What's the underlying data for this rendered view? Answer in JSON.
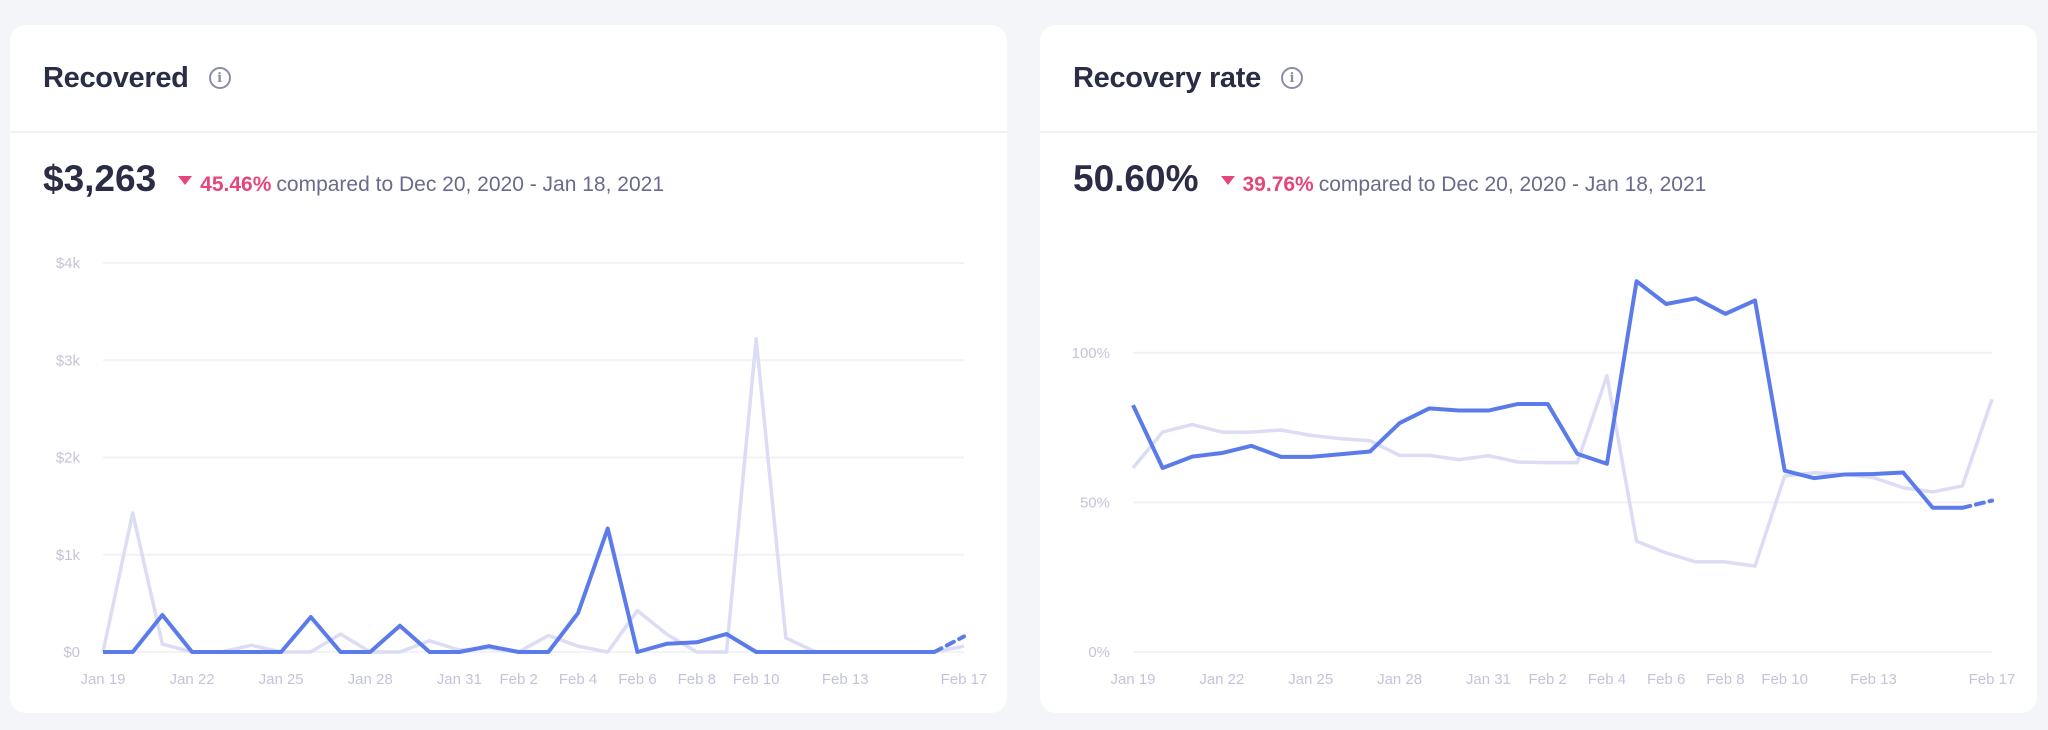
{
  "colors": {
    "current": "#5b7bea",
    "previous": "#dcdcf4",
    "negative": "#e5467a",
    "grid": "#f2f2f7"
  },
  "cards": [
    {
      "title": "Recovered",
      "info_icon": "info-icon",
      "value": "$3,263",
      "change_direction": "down",
      "change": "45.46%",
      "compare_text": "compared to Dec 20, 2020 - Jan 18, 2021"
    },
    {
      "title": "Recovery rate",
      "info_icon": "info-icon",
      "value": "50.60%",
      "change_direction": "down",
      "change": "39.76%",
      "compare_text": "compared to Dec 20, 2020 - Jan 18, 2021"
    }
  ],
  "chart_data": [
    {
      "type": "line",
      "x": [
        "Jan 19",
        "Jan 20",
        "Jan 21",
        "Jan 22",
        "Jan 23",
        "Jan 24",
        "Jan 25",
        "Jan 26",
        "Jan 27",
        "Jan 28",
        "Jan 29",
        "Jan 30",
        "Jan 31",
        "Feb 1",
        "Feb 2",
        "Feb 3",
        "Feb 4",
        "Feb 5",
        "Feb 6",
        "Feb 7",
        "Feb 8",
        "Feb 9",
        "Feb 10",
        "Feb 11",
        "Feb 12",
        "Feb 13",
        "Feb 14",
        "Feb 15",
        "Feb 16",
        "Feb 17"
      ],
      "xticks": [
        "Jan 19",
        "Jan 22",
        "Jan 25",
        "Jan 28",
        "Jan 31",
        "Feb 2",
        "Feb 4",
        "Feb 6",
        "Feb 8",
        "Feb 10",
        "Feb 13",
        "Feb 17"
      ],
      "yticks": [
        {
          "value": 0,
          "label": "$0"
        },
        {
          "value": 1000,
          "label": "$1k"
        },
        {
          "value": 2000,
          "label": "$2k"
        },
        {
          "value": 3000,
          "label": "$3k"
        },
        {
          "value": 4000,
          "label": "$4k"
        }
      ],
      "ylim": [
        0,
        4000
      ],
      "grid": true,
      "series": [
        {
          "role": "previous",
          "values": [
            0,
            1430,
            80,
            0,
            0,
            70,
            0,
            0,
            185,
            0,
            0,
            115,
            20,
            40,
            0,
            170,
            60,
            0,
            425,
            180,
            0,
            0,
            3220,
            145,
            0,
            0,
            0,
            0,
            0,
            60
          ]
        },
        {
          "role": "current",
          "values": [
            0,
            0,
            380,
            0,
            0,
            0,
            0,
            360,
            0,
            0,
            270,
            0,
            0,
            60,
            0,
            0,
            400,
            1270,
            0,
            85,
            100,
            185,
            0,
            0,
            0,
            0,
            0,
            0,
            0,
            160
          ],
          "last_segment_dashed": true
        }
      ]
    },
    {
      "type": "line",
      "x": [
        "Jan 19",
        "Jan 20",
        "Jan 21",
        "Jan 22",
        "Jan 23",
        "Jan 24",
        "Jan 25",
        "Jan 26",
        "Jan 27",
        "Jan 28",
        "Jan 29",
        "Jan 30",
        "Jan 31",
        "Feb 1",
        "Feb 2",
        "Feb 3",
        "Feb 4",
        "Feb 5",
        "Feb 6",
        "Feb 7",
        "Feb 8",
        "Feb 9",
        "Feb 10",
        "Feb 11",
        "Feb 12",
        "Feb 13",
        "Feb 14",
        "Feb 15",
        "Feb 16",
        "Feb 17"
      ],
      "xticks": [
        "Jan 19",
        "Jan 22",
        "Jan 25",
        "Jan 28",
        "Jan 31",
        "Feb 2",
        "Feb 4",
        "Feb 6",
        "Feb 8",
        "Feb 10",
        "Feb 13",
        "Feb 17"
      ],
      "yticks": [
        {
          "value": 0,
          "label": "0%"
        },
        {
          "value": 50,
          "label": "50%"
        },
        {
          "value": 100,
          "label": "100%"
        }
      ],
      "ylim": [
        0,
        130
      ],
      "grid": true,
      "series": [
        {
          "role": "previous",
          "values": [
            61.5,
            73.5,
            76,
            73.5,
            73.5,
            74.2,
            72.4,
            71.3,
            70.6,
            65.7,
            65.7,
            64.3,
            65.6,
            63.5,
            63.3,
            63.3,
            92.3,
            37,
            33.1,
            30.1,
            30.1,
            28.7,
            58.8,
            59.9,
            59.4,
            58.3,
            54.9,
            53.5,
            55.5,
            84.5
          ]
        },
        {
          "role": "current",
          "values": [
            82.5,
            61.5,
            65.3,
            66.5,
            68.9,
            65.2,
            65.2,
            66.1,
            67,
            76.5,
            81.4,
            80.7,
            80.7,
            82.9,
            82.9,
            66.2,
            62.9,
            123.9,
            116.3,
            118.2,
            113,
            117.5,
            60.6,
            58.1,
            59.3,
            59.5,
            60,
            48.2,
            48.2,
            50.6
          ],
          "last_segment_dashed": true
        }
      ]
    }
  ]
}
